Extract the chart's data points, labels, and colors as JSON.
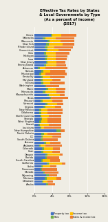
{
  "title": "Effective Tax Rates by States\n& Local Governments by Type",
  "subtitle": "(As a percent of income)",
  "year": "(2017)",
  "states": [
    "Illinois",
    "Nebraska",
    "Wisconsin",
    "New York",
    "Rhode Island",
    "Connecticut",
    "Ohio",
    "Michigan",
    "Iowa",
    "New Jersey",
    "Pennsylvania",
    "Arkansas",
    "Kansas",
    "Mississippi",
    "Kentucky",
    "Maryland",
    "Indiana",
    "Washington",
    "Maine",
    "Minnesota",
    "Massachusetts",
    "Texas",
    "Missouri",
    "Vermont",
    "Virginia",
    "New Mexico",
    "Oklahoma",
    "North Carolina",
    "Georgia",
    "West Virginia",
    "Hawaii",
    "Louisiana",
    "New Hampshire",
    "North Dakota",
    "DC",
    "South Dakota",
    "Arizona",
    "Alabama",
    "Colorado",
    "Utah",
    "Oregon",
    "Florida",
    "South Carolina",
    "California",
    "Idaho",
    "Tennessee",
    "Nevada",
    "Wyoming",
    "Montana",
    "Delaware",
    "Alaska"
  ],
  "property": [
    3.8,
    1.9,
    2.9,
    2.7,
    2.3,
    2.6,
    2.2,
    2.4,
    2.3,
    2.6,
    2.2,
    0.7,
    1.5,
    1.0,
    1.3,
    1.4,
    1.5,
    2.3,
    2.7,
    1.9,
    2.8,
    3.4,
    1.4,
    2.5,
    2.0,
    1.1,
    1.1,
    1.2,
    1.3,
    1.1,
    0.9,
    1.2,
    5.0,
    1.6,
    1.5,
    1.4,
    2.2,
    1.0,
    1.7,
    1.6,
    2.4,
    2.5,
    1.5,
    2.8,
    1.5,
    1.3,
    2.0,
    2.7,
    2.3,
    1.7,
    2.6
  ],
  "fees": [
    0.3,
    0.5,
    0.5,
    0.5,
    0.6,
    0.4,
    0.5,
    0.5,
    0.5,
    0.4,
    0.4,
    0.5,
    0.5,
    0.5,
    0.5,
    0.4,
    0.5,
    0.3,
    0.4,
    0.5,
    0.4,
    0.3,
    0.5,
    0.4,
    0.4,
    0.5,
    0.4,
    0.4,
    0.4,
    0.4,
    0.3,
    0.4,
    0.9,
    0.5,
    0.3,
    0.4,
    0.4,
    0.4,
    0.5,
    0.4,
    0.5,
    0.3,
    0.4,
    0.4,
    0.4,
    0.4,
    0.3,
    0.5,
    0.5,
    0.3,
    0.5
  ],
  "income": [
    2.0,
    2.4,
    2.5,
    3.2,
    1.6,
    2.5,
    2.1,
    2.0,
    2.1,
    2.0,
    2.4,
    1.3,
    1.5,
    1.0,
    1.7,
    2.3,
    1.6,
    0.0,
    1.8,
    2.6,
    2.5,
    0.0,
    2.1,
    2.3,
    2.3,
    1.4,
    1.4,
    1.7,
    1.3,
    1.5,
    2.0,
    0.5,
    0.0,
    0.8,
    2.2,
    0.0,
    1.0,
    1.0,
    2.0,
    2.0,
    2.8,
    0.0,
    1.6,
    3.0,
    1.7,
    0.0,
    0.0,
    0.0,
    2.2,
    1.0,
    0.0
  ],
  "sales": [
    3.5,
    4.2,
    3.1,
    2.6,
    4.2,
    2.7,
    3.1,
    2.6,
    2.5,
    2.0,
    2.2,
    5.0,
    3.5,
    4.8,
    3.3,
    1.8,
    3.2,
    3.0,
    2.1,
    1.8,
    1.2,
    4.0,
    2.4,
    1.4,
    1.4,
    3.4,
    3.5,
    2.7,
    3.1,
    3.0,
    2.9,
    4.0,
    1.0,
    3.2,
    2.0,
    3.5,
    2.3,
    3.8,
    1.5,
    1.8,
    0.7,
    2.8,
    2.3,
    0.8,
    1.4,
    3.4,
    3.1,
    2.0,
    1.0,
    1.2,
    1.5
  ],
  "colors": {
    "property": "#4472C4",
    "fees": "#70AD47",
    "income": "#FFC000",
    "sales": "#ED7D31"
  },
  "bg_color": "#EFEDE4",
  "xlim": [
    0,
    16
  ],
  "xticks": [
    0,
    4,
    8,
    12,
    16
  ],
  "xtick_labels": [
    "0%",
    "4%",
    "8%",
    "12%",
    "16%"
  ]
}
